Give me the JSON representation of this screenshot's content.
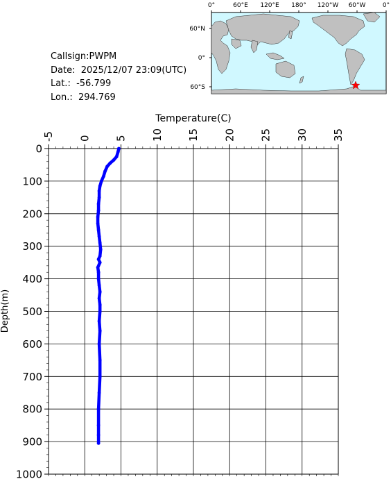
{
  "header": {
    "callsign_text": "Callsign:PWPM",
    "date_text": "Date:  2025/12/07 23:09(UTC)",
    "lat_text": "Lat.:  -56.799",
    "lon_text": "Lon.:  294.769"
  },
  "map": {
    "top_labels": [
      "0°",
      "60°E",
      "120°E",
      "180°",
      "120°W",
      "60°W",
      "0°"
    ],
    "side_labels": [
      "60°N",
      "0°",
      "60°S"
    ],
    "ocean_color": "#d0f8ff",
    "land_color": "#c0c0c0",
    "marker_color": "#ff0000",
    "marker_icon": "star-icon"
  },
  "chart_data": {
    "type": "line",
    "title": "",
    "xlabel": "Temperature(C)",
    "ylabel": "Depth(m)",
    "xlim": [
      -5,
      35
    ],
    "ylim": [
      0,
      1000
    ],
    "x_ticks": [
      "-5",
      "0",
      "5",
      "10",
      "15",
      "20",
      "25",
      "30",
      "35"
    ],
    "y_ticks": [
      "0",
      "100",
      "200",
      "300",
      "400",
      "500",
      "600",
      "700",
      "800",
      "900",
      "1000"
    ],
    "y_inverted": true,
    "grid": true,
    "series": [
      {
        "color": "#0000ff",
        "points": [
          [
            4.7,
            0
          ],
          [
            4.6,
            10
          ],
          [
            4.4,
            25
          ],
          [
            4.0,
            35
          ],
          [
            3.5,
            45
          ],
          [
            3.1,
            55
          ],
          [
            2.8,
            70
          ],
          [
            2.6,
            85
          ],
          [
            2.3,
            100
          ],
          [
            2.1,
            115
          ],
          [
            2.0,
            130
          ],
          [
            2.0,
            150
          ],
          [
            1.9,
            170
          ],
          [
            1.9,
            190
          ],
          [
            1.8,
            210
          ],
          [
            1.8,
            230
          ],
          [
            1.9,
            250
          ],
          [
            2.0,
            270
          ],
          [
            2.1,
            290
          ],
          [
            2.2,
            310
          ],
          [
            2.1,
            330
          ],
          [
            1.9,
            340
          ],
          [
            2.1,
            350
          ],
          [
            1.8,
            365
          ],
          [
            1.9,
            380
          ],
          [
            1.9,
            400
          ],
          [
            2.0,
            420
          ],
          [
            2.1,
            440
          ],
          [
            2.0,
            460
          ],
          [
            2.1,
            480
          ],
          [
            2.1,
            500
          ],
          [
            2.0,
            530
          ],
          [
            2.1,
            560
          ],
          [
            2.0,
            600
          ],
          [
            2.1,
            650
          ],
          [
            2.1,
            700
          ],
          [
            2.0,
            750
          ],
          [
            1.9,
            800
          ],
          [
            1.9,
            850
          ],
          [
            1.9,
            880
          ],
          [
            1.9,
            905
          ]
        ]
      }
    ]
  }
}
